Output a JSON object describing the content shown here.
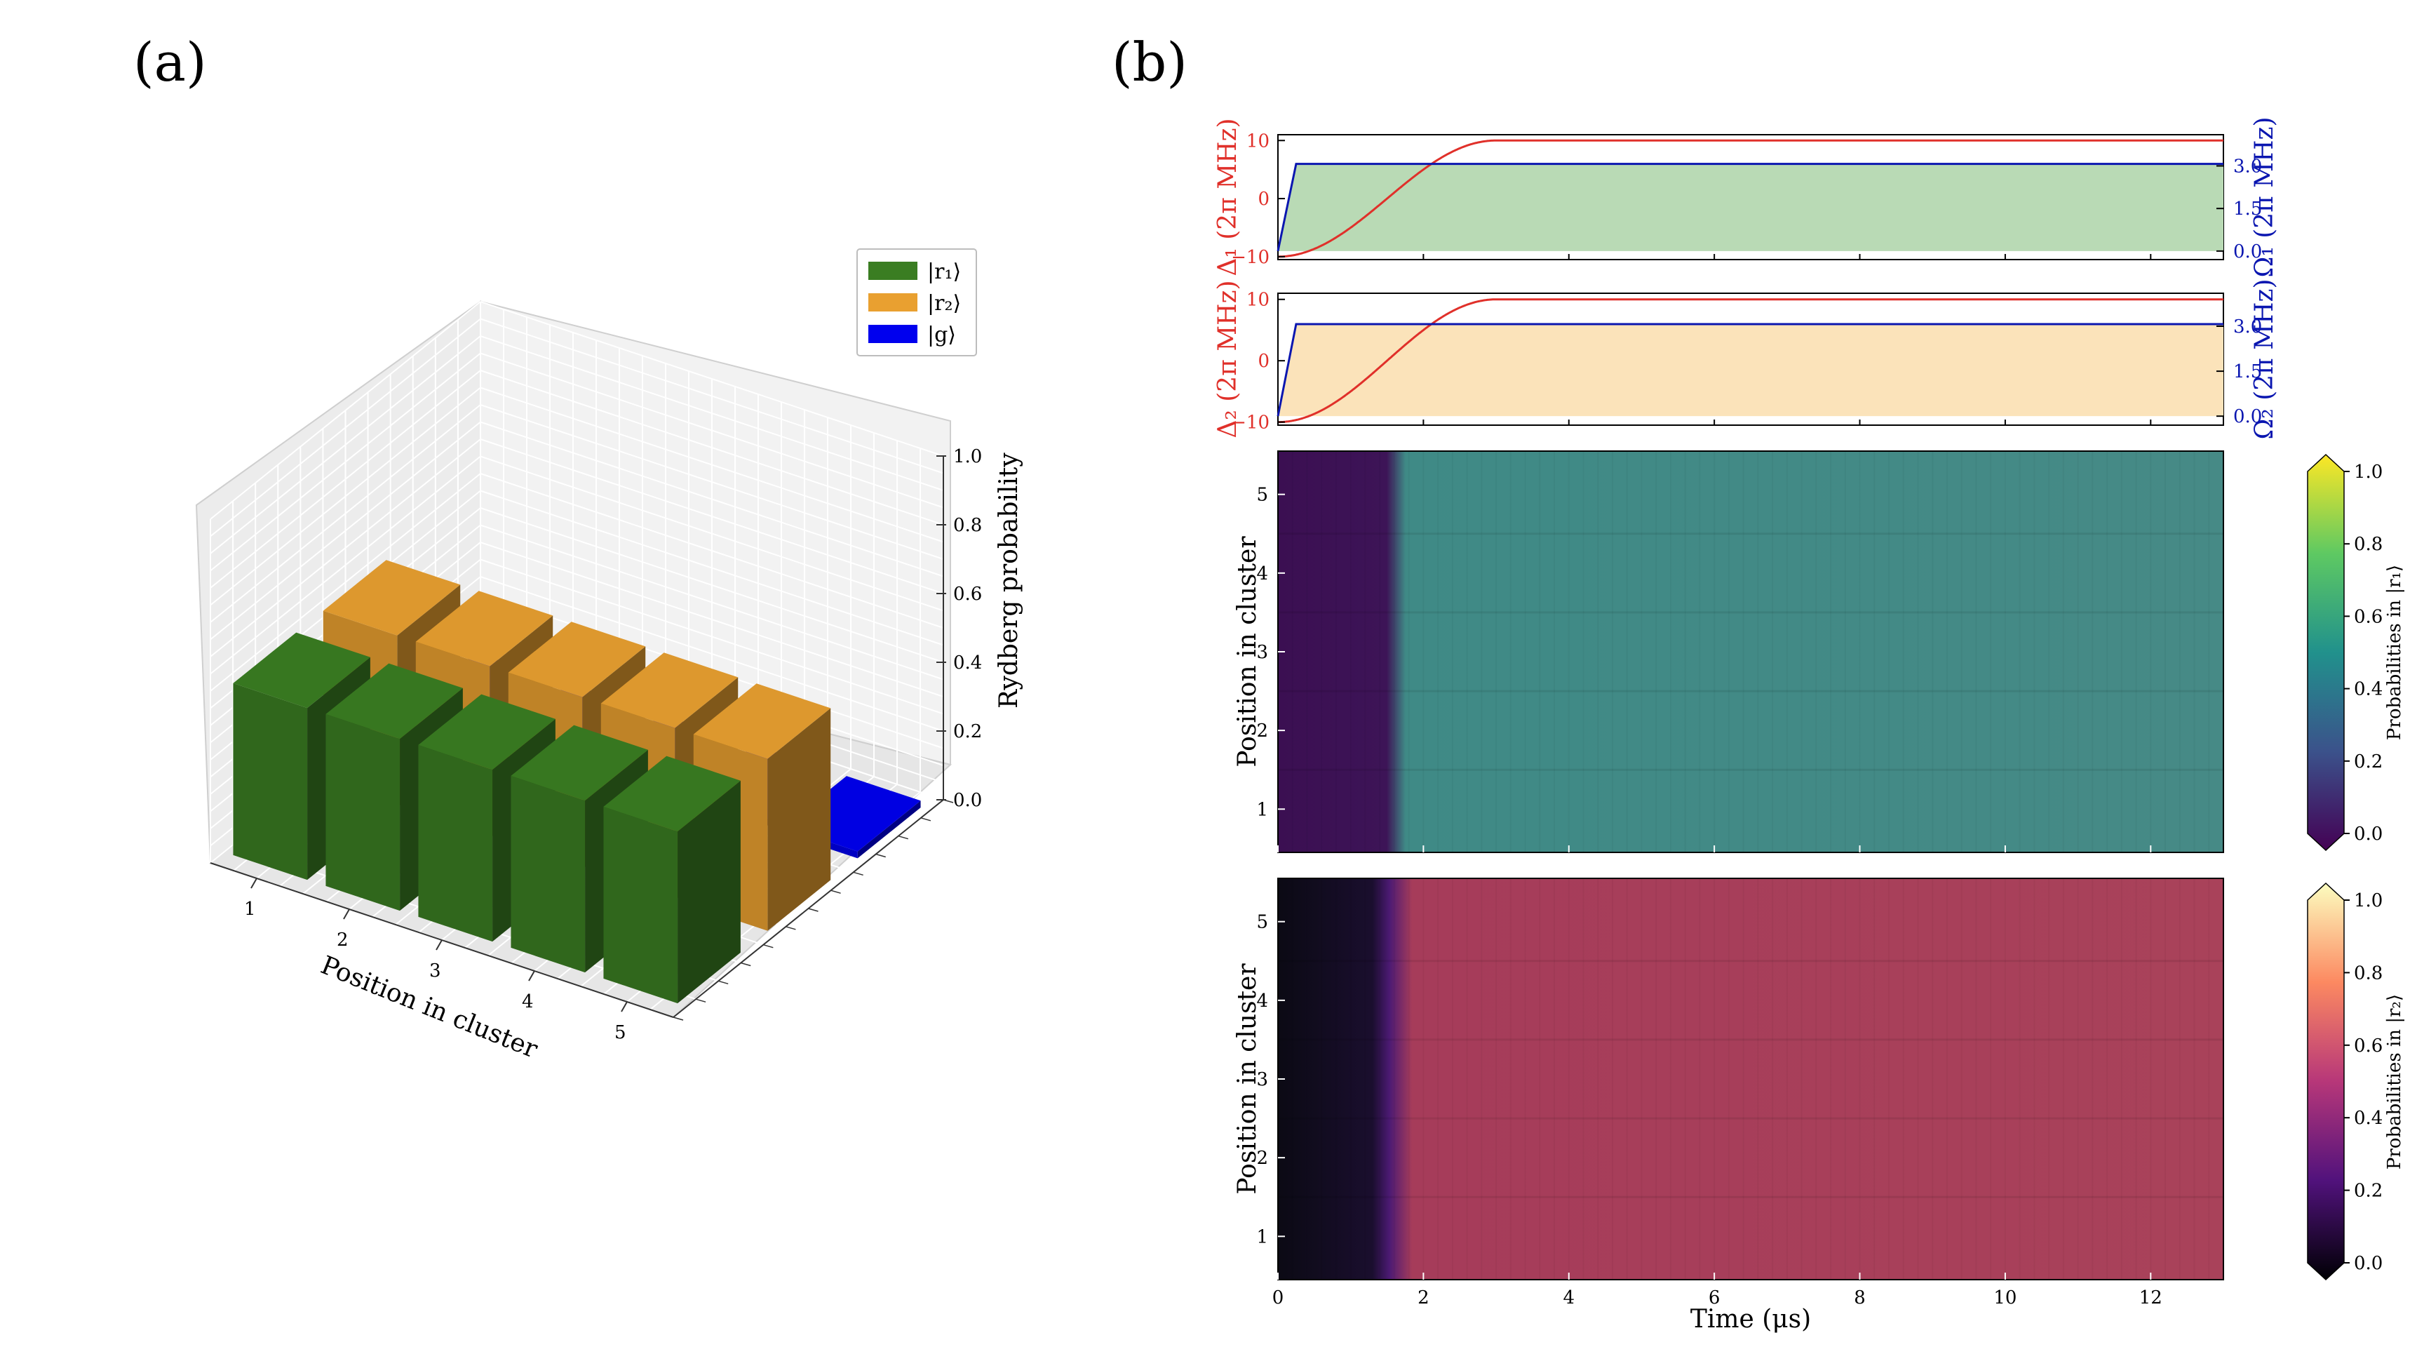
{
  "panel_a": {
    "label": "(a)"
  },
  "panel_b": {
    "label": "(b)"
  },
  "colors": {
    "r1": "#3a7d22",
    "r2": "#e9a030",
    "g": "#0000ee",
    "detuning": "#e0302a",
    "rabi": "#0a16b0",
    "fill1": "#b9dab5",
    "fill2": "#fbe3ba",
    "heat1_before": "#3b0f52",
    "heat1_after": "#3f8a86",
    "heat2_before": "#0b0a14",
    "heat2_after": "#a63c5a"
  },
  "chart_data": [
    {
      "type": "bar",
      "projection": "3d",
      "categories": [
        "1",
        "2",
        "3",
        "4",
        "5"
      ],
      "xlabel": "Position in cluster",
      "zlabel": "Rydberg probability",
      "zlim": [
        0,
        1.0
      ],
      "zticks": [
        "0.0",
        "0.2",
        "0.4",
        "0.6",
        "0.8",
        "1.0"
      ],
      "series": [
        {
          "name": "|r₁⟩",
          "color": "#3a7d22",
          "values": [
            0.5,
            0.5,
            0.5,
            0.5,
            0.5
          ]
        },
        {
          "name": "|r₂⟩",
          "color": "#e9a030",
          "values": [
            0.5,
            0.5,
            0.5,
            0.5,
            0.5
          ]
        },
        {
          "name": "|g⟩",
          "color": "#0000ee",
          "values": [
            0.0,
            0.0,
            0.0,
            0.0,
            0.0
          ]
        }
      ]
    },
    {
      "type": "line",
      "ylabel_left": "Δ₁ (2π MHz)",
      "ylabel_right": "Ω₁ (2π MHz)",
      "yticks_left": [
        "−10",
        "0",
        "10"
      ],
      "yticks_right": [
        "0.0",
        "1.5",
        "3.0"
      ],
      "ylim_left": [
        -10.5,
        11
      ],
      "ylim_right": [
        -0.3,
        4.1
      ],
      "xlim": [
        0,
        13
      ],
      "detuning": {
        "x": [
          0,
          0.5,
          1.0,
          1.5,
          2.0,
          2.5,
          3.0,
          13
        ],
        "y": [
          -10,
          -9.6,
          -7,
          -2.5,
          3,
          8,
          10,
          10
        ]
      },
      "rabi": {
        "x": [
          0,
          0.25,
          13
        ],
        "y": [
          0,
          3.07,
          3.07
        ]
      }
    },
    {
      "type": "line",
      "ylabel_left": "Δ₂ (2π MHz)",
      "ylabel_right": "Ω₂ (2π MHz)",
      "yticks_left": [
        "−10",
        "0",
        "10"
      ],
      "yticks_right": [
        "0.0",
        "1.5",
        "3.0"
      ],
      "ylim_left": [
        -10.5,
        11
      ],
      "ylim_right": [
        -0.3,
        4.1
      ],
      "xlim": [
        0,
        13
      ],
      "detuning": {
        "x": [
          0,
          0.5,
          1.0,
          1.5,
          2.0,
          2.5,
          3.0,
          13
        ],
        "y": [
          -10,
          -9.6,
          -7,
          -2.5,
          3,
          8,
          10,
          10
        ]
      },
      "rabi": {
        "x": [
          0,
          0.25,
          13
        ],
        "y": [
          0,
          3.07,
          3.07
        ]
      }
    },
    {
      "type": "heatmap",
      "ylabel": "Position in cluster",
      "yticks": [
        "1",
        "2",
        "3",
        "4",
        "5"
      ],
      "xlim": [
        0,
        13
      ],
      "transition_time": 1.8,
      "value_before": 0.02,
      "value_after": 0.5,
      "colorbar": {
        "label": "Probabilities in |r₁⟩",
        "ticks": [
          "0.0",
          "0.2",
          "0.4",
          "0.6",
          "0.8",
          "1.0"
        ]
      }
    },
    {
      "type": "heatmap",
      "ylabel": "Position in cluster",
      "yticks": [
        "1",
        "2",
        "3",
        "4",
        "5"
      ],
      "xlabel": "Time (μs)",
      "xticks": [
        "0",
        "2",
        "4",
        "6",
        "8",
        "10",
        "12"
      ],
      "xlim": [
        0,
        13
      ],
      "transition_time": 1.8,
      "value_before": 0.02,
      "value_after": 0.5,
      "colorbar": {
        "label": "Probabilities in |r₂⟩",
        "ticks": [
          "0.0",
          "0.2",
          "0.4",
          "0.6",
          "0.8",
          "1.0"
        ]
      }
    }
  ]
}
